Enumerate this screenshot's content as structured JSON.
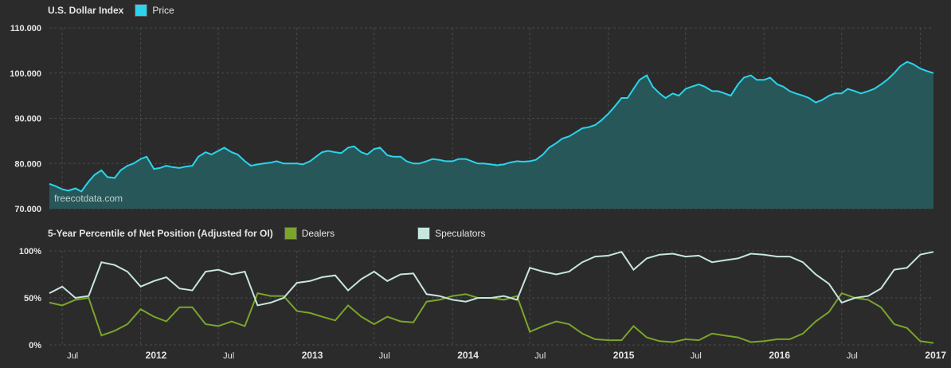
{
  "chart_data": [
    {
      "type": "area",
      "title": "U.S. Dollar Index",
      "series": [
        {
          "name": "Price",
          "color": "#2ad4ec",
          "fill": "#275a5c",
          "x": [
            "2011-06-01",
            "2011-06-15",
            "2011-07-01",
            "2011-07-15",
            "2011-08-01",
            "2011-08-15",
            "2011-09-01",
            "2011-09-15",
            "2011-10-01",
            "2011-10-15",
            "2011-11-01",
            "2011-11-15",
            "2011-12-01",
            "2011-12-15",
            "2012-01-01",
            "2012-01-15",
            "2012-02-01",
            "2012-02-15",
            "2012-03-01",
            "2012-03-15",
            "2012-04-01",
            "2012-04-15",
            "2012-05-01",
            "2012-05-15",
            "2012-06-01",
            "2012-06-15",
            "2012-07-01",
            "2012-07-15",
            "2012-08-01",
            "2012-08-15",
            "2012-09-01",
            "2012-09-15",
            "2012-10-01",
            "2012-10-15",
            "2012-11-01",
            "2012-11-15",
            "2012-12-01",
            "2012-12-15",
            "2013-01-01",
            "2013-01-15",
            "2013-02-01",
            "2013-02-15",
            "2013-03-01",
            "2013-03-15",
            "2013-04-01",
            "2013-04-15",
            "2013-05-01",
            "2013-05-15",
            "2013-06-01",
            "2013-06-15",
            "2013-07-01",
            "2013-07-15",
            "2013-08-01",
            "2013-08-15",
            "2013-09-01",
            "2013-09-15",
            "2013-10-01",
            "2013-10-15",
            "2013-11-01",
            "2013-11-15",
            "2013-12-01",
            "2013-12-15",
            "2014-01-01",
            "2014-01-15",
            "2014-02-01",
            "2014-02-15",
            "2014-03-01",
            "2014-03-15",
            "2014-04-01",
            "2014-04-15",
            "2014-05-01",
            "2014-05-15",
            "2014-06-01",
            "2014-06-15",
            "2014-07-01",
            "2014-07-15",
            "2014-08-01",
            "2014-08-15",
            "2014-09-01",
            "2014-09-15",
            "2014-10-01",
            "2014-10-15",
            "2014-11-01",
            "2014-11-15",
            "2014-12-01",
            "2014-12-15",
            "2015-01-01",
            "2015-01-15",
            "2015-02-01",
            "2015-02-15",
            "2015-03-01",
            "2015-03-15",
            "2015-04-01",
            "2015-04-15",
            "2015-05-01",
            "2015-05-15",
            "2015-06-01",
            "2015-06-15",
            "2015-07-01",
            "2015-07-15",
            "2015-08-01",
            "2015-08-15",
            "2015-09-01",
            "2015-09-15",
            "2015-10-01",
            "2015-10-15",
            "2015-11-01",
            "2015-11-15",
            "2015-12-01",
            "2015-12-15",
            "2016-01-01",
            "2016-01-15",
            "2016-02-01",
            "2016-02-15",
            "2016-03-01",
            "2016-03-15",
            "2016-04-01",
            "2016-04-15",
            "2016-05-01",
            "2016-05-15",
            "2016-06-01",
            "2016-06-15",
            "2016-07-01",
            "2016-07-15",
            "2016-08-01",
            "2016-08-15",
            "2016-09-01",
            "2016-09-15",
            "2016-10-01",
            "2016-10-15",
            "2016-11-01",
            "2016-11-15",
            "2016-12-01",
            "2016-12-15",
            "2017-01-01",
            "2017-01-15",
            "2017-02-01"
          ],
          "values": [
            75.5,
            75.0,
            74.3,
            74.0,
            74.5,
            73.8,
            76.0,
            77.5,
            78.5,
            77.0,
            76.8,
            78.5,
            79.5,
            80.0,
            81.0,
            81.5,
            78.8,
            79.0,
            79.5,
            79.2,
            79.0,
            79.3,
            79.5,
            81.5,
            82.5,
            82.0,
            82.8,
            83.5,
            82.5,
            82.0,
            80.5,
            79.5,
            79.8,
            80.0,
            80.2,
            80.5,
            80.0,
            80.0,
            80.0,
            79.8,
            80.5,
            81.5,
            82.5,
            82.8,
            82.5,
            82.3,
            83.5,
            83.8,
            82.5,
            82.0,
            83.2,
            83.5,
            81.8,
            81.5,
            81.5,
            80.5,
            80.0,
            80.0,
            80.5,
            81.0,
            80.8,
            80.5,
            80.5,
            81.0,
            81.0,
            80.5,
            80.0,
            80.0,
            79.8,
            79.6,
            79.8,
            80.2,
            80.5,
            80.4,
            80.5,
            80.8,
            82.0,
            83.5,
            84.5,
            85.5,
            86.0,
            86.8,
            87.8,
            88.0,
            88.5,
            89.5,
            91.0,
            92.5,
            94.5,
            94.5,
            96.5,
            98.5,
            99.5,
            97.0,
            95.5,
            94.5,
            95.5,
            95.0,
            96.5,
            97.0,
            97.5,
            97.0,
            96.0,
            96.0,
            95.5,
            95.0,
            97.5,
            99.0,
            99.5,
            98.5,
            98.5,
            99.0,
            97.5,
            97.0,
            96.0,
            95.5,
            95.0,
            94.5,
            93.5,
            94.0,
            95.0,
            95.5,
            95.5,
            96.5,
            96.0,
            95.5,
            96.0,
            96.5,
            97.5,
            98.5,
            100.0,
            101.5,
            102.5,
            102.0,
            101.0,
            100.5,
            100.0
          ]
        }
      ],
      "ylim": [
        70,
        110
      ],
      "yticks": [
        "70.000",
        "80.000",
        "90.000",
        "100.000",
        "110.000"
      ],
      "watermark": "freecotdata.com",
      "grid": true
    },
    {
      "type": "line",
      "title": "5-Year Percentile of Net Position (Adjusted for OI)",
      "series": [
        {
          "name": "Dealers",
          "color": "#7aa52a",
          "x": [
            "2011-06-01",
            "2011-07-01",
            "2011-08-01",
            "2011-09-01",
            "2011-10-01",
            "2011-11-01",
            "2011-12-01",
            "2012-01-01",
            "2012-02-01",
            "2012-03-01",
            "2012-04-01",
            "2012-05-01",
            "2012-06-01",
            "2012-07-01",
            "2012-08-01",
            "2012-09-01",
            "2012-10-01",
            "2012-11-01",
            "2012-12-01",
            "2013-01-01",
            "2013-02-01",
            "2013-03-01",
            "2013-04-01",
            "2013-05-01",
            "2013-06-01",
            "2013-07-01",
            "2013-08-01",
            "2013-09-01",
            "2013-10-01",
            "2013-11-01",
            "2013-12-01",
            "2014-01-01",
            "2014-02-01",
            "2014-03-01",
            "2014-04-01",
            "2014-05-01",
            "2014-06-01",
            "2014-07-01",
            "2014-08-01",
            "2014-09-01",
            "2014-10-01",
            "2014-11-01",
            "2014-12-01",
            "2015-01-01",
            "2015-02-01",
            "2015-03-01",
            "2015-04-01",
            "2015-05-01",
            "2015-06-01",
            "2015-07-01",
            "2015-08-01",
            "2015-09-01",
            "2015-10-01",
            "2015-11-01",
            "2015-12-01",
            "2016-01-01",
            "2016-02-01",
            "2016-03-01",
            "2016-04-01",
            "2016-05-01",
            "2016-06-01",
            "2016-07-01",
            "2016-08-01",
            "2016-09-01",
            "2016-10-01",
            "2016-11-01",
            "2016-12-01",
            "2017-01-01",
            "2017-02-01"
          ],
          "values": [
            45,
            42,
            48,
            50,
            10,
            15,
            22,
            38,
            30,
            25,
            40,
            40,
            22,
            20,
            25,
            20,
            55,
            52,
            52,
            36,
            34,
            30,
            26,
            42,
            30,
            22,
            30,
            25,
            24,
            46,
            48,
            52,
            54,
            50,
            50,
            48,
            52,
            14,
            20,
            25,
            22,
            12,
            6,
            5,
            5,
            20,
            8,
            4,
            3,
            6,
            5,
            12,
            10,
            8,
            3,
            4,
            6,
            6,
            12,
            25,
            35,
            55,
            50,
            48,
            40,
            22,
            18,
            4,
            2
          ]
        },
        {
          "name": "Speculators",
          "color": "#c7e6dd",
          "x": [
            "2011-06-01",
            "2011-07-01",
            "2011-08-01",
            "2011-09-01",
            "2011-10-01",
            "2011-11-01",
            "2011-12-01",
            "2012-01-01",
            "2012-02-01",
            "2012-03-01",
            "2012-04-01",
            "2012-05-01",
            "2012-06-01",
            "2012-07-01",
            "2012-08-01",
            "2012-09-01",
            "2012-10-01",
            "2012-11-01",
            "2012-12-01",
            "2013-01-01",
            "2013-02-01",
            "2013-03-01",
            "2013-04-01",
            "2013-05-01",
            "2013-06-01",
            "2013-07-01",
            "2013-08-01",
            "2013-09-01",
            "2013-10-01",
            "2013-11-01",
            "2013-12-01",
            "2014-01-01",
            "2014-02-01",
            "2014-03-01",
            "2014-04-01",
            "2014-05-01",
            "2014-06-01",
            "2014-07-01",
            "2014-08-01",
            "2014-09-01",
            "2014-10-01",
            "2014-11-01",
            "2014-12-01",
            "2015-01-01",
            "2015-02-01",
            "2015-03-01",
            "2015-04-01",
            "2015-05-01",
            "2015-06-01",
            "2015-07-01",
            "2015-08-01",
            "2015-09-01",
            "2015-10-01",
            "2015-11-01",
            "2015-12-01",
            "2016-01-01",
            "2016-02-01",
            "2016-03-01",
            "2016-04-01",
            "2016-05-01",
            "2016-06-01",
            "2016-07-01",
            "2016-08-01",
            "2016-09-01",
            "2016-10-01",
            "2016-11-01",
            "2016-12-01",
            "2017-01-01",
            "2017-02-01"
          ],
          "values": [
            55,
            62,
            50,
            52,
            88,
            85,
            78,
            62,
            68,
            72,
            60,
            58,
            78,
            80,
            75,
            78,
            42,
            45,
            50,
            66,
            68,
            72,
            74,
            58,
            70,
            78,
            68,
            75,
            76,
            54,
            52,
            48,
            46,
            50,
            50,
            52,
            48,
            82,
            78,
            75,
            78,
            88,
            94,
            95,
            99,
            80,
            92,
            96,
            97,
            94,
            95,
            88,
            90,
            92,
            97,
            96,
            94,
            94,
            88,
            75,
            65,
            45,
            50,
            52,
            60,
            80,
            82,
            96,
            99
          ]
        }
      ],
      "ylim": [
        0,
        100
      ],
      "yticks": [
        "0%",
        "50%",
        "100%"
      ],
      "grid": true
    }
  ],
  "x_axis": {
    "ticks": [
      {
        "label": "Jul",
        "x": "2011-07-01",
        "bold": false
      },
      {
        "label": "2012",
        "x": "2012-01-01",
        "bold": true
      },
      {
        "label": "Jul",
        "x": "2012-07-01",
        "bold": false
      },
      {
        "label": "2013",
        "x": "2013-01-01",
        "bold": true
      },
      {
        "label": "Jul",
        "x": "2013-07-01",
        "bold": false
      },
      {
        "label": "2014",
        "x": "2014-01-01",
        "bold": true
      },
      {
        "label": "Jul",
        "x": "2014-07-01",
        "bold": false
      },
      {
        "label": "2015",
        "x": "2015-01-01",
        "bold": true
      },
      {
        "label": "Jul",
        "x": "2015-07-01",
        "bold": false
      },
      {
        "label": "2016",
        "x": "2016-01-01",
        "bold": true
      },
      {
        "label": "Jul",
        "x": "2016-07-01",
        "bold": false
      },
      {
        "label": "2017",
        "x": "2017-01-01",
        "bold": true
      }
    ],
    "range": [
      "2011-06-01",
      "2017-02-01"
    ]
  }
}
